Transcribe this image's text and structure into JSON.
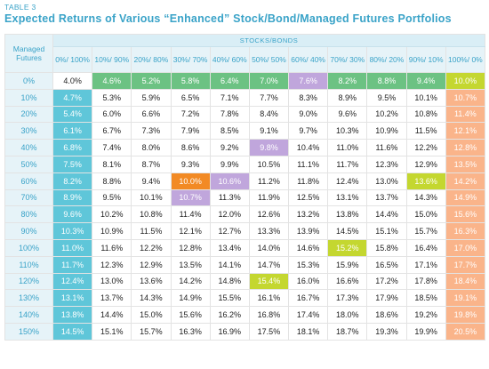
{
  "table_label": "TABLE 3",
  "title": "Expected Returns of Various “Enhanced” Stock/Bond/Managed Futures Portfolios",
  "corner_label": "Managed Futures",
  "super_header": "STOCKS/BONDS",
  "columns": [
    "0%/ 100%",
    "10%/ 90%",
    "20%/ 80%",
    "30%/ 70%",
    "40%/ 60%",
    "50%/ 50%",
    "60%/ 40%",
    "70%/ 30%",
    "80%/ 20%",
    "90%/ 10%",
    "100%/ 0%"
  ],
  "colors": {
    "blue": "#5fc6d9",
    "light_orange": "#fab48a",
    "green": "#6cc283",
    "yellow_green": "#c4d730",
    "purple": "#c0a6dc",
    "orange": "#f28a24",
    "header_text": "#3aa3c8"
  },
  "rows": [
    {
      "label": "0%",
      "values": [
        "4.0%",
        "4.6%",
        "5.2%",
        "5.8%",
        "6.4%",
        "7.0%",
        "7.6%",
        "8.2%",
        "8.8%",
        "9.4%",
        "10.0%"
      ],
      "styles": [
        "plain",
        "green",
        "green",
        "green",
        "green",
        "green",
        "purple",
        "green",
        "green",
        "green",
        "yellowgreen"
      ]
    },
    {
      "label": "10%",
      "values": [
        "4.7%",
        "5.3%",
        "5.9%",
        "6.5%",
        "7.1%",
        "7.7%",
        "8.3%",
        "8.9%",
        "9.5%",
        "10.1%",
        "10.7%"
      ],
      "styles": [
        "blue",
        "plain",
        "plain",
        "plain",
        "plain",
        "plain",
        "plain",
        "plain",
        "plain",
        "plain",
        "lorange"
      ]
    },
    {
      "label": "20%",
      "values": [
        "5.4%",
        "6.0%",
        "6.6%",
        "7.2%",
        "7.8%",
        "8.4%",
        "9.0%",
        "9.6%",
        "10.2%",
        "10.8%",
        "11.4%"
      ],
      "styles": [
        "blue",
        "plain",
        "plain",
        "plain",
        "plain",
        "plain",
        "plain",
        "plain",
        "plain",
        "plain",
        "lorange"
      ]
    },
    {
      "label": "30%",
      "values": [
        "6.1%",
        "6.7%",
        "7.3%",
        "7.9%",
        "8.5%",
        "9.1%",
        "9.7%",
        "10.3%",
        "10.9%",
        "11.5%",
        "12.1%"
      ],
      "styles": [
        "blue",
        "plain",
        "plain",
        "plain",
        "plain",
        "plain",
        "plain",
        "plain",
        "plain",
        "plain",
        "lorange"
      ]
    },
    {
      "label": "40%",
      "values": [
        "6.8%",
        "7.4%",
        "8.0%",
        "8.6%",
        "9.2%",
        "9.8%",
        "10.4%",
        "11.0%",
        "11.6%",
        "12.2%",
        "12.8%"
      ],
      "styles": [
        "blue",
        "plain",
        "plain",
        "plain",
        "plain",
        "purple",
        "plain",
        "plain",
        "plain",
        "plain",
        "lorange"
      ]
    },
    {
      "label": "50%",
      "values": [
        "7.5%",
        "8.1%",
        "8.7%",
        "9.3%",
        "9.9%",
        "10.5%",
        "11.1%",
        "11.7%",
        "12.3%",
        "12.9%",
        "13.5%"
      ],
      "styles": [
        "blue",
        "plain",
        "plain",
        "plain",
        "plain",
        "plain",
        "plain",
        "plain",
        "plain",
        "plain",
        "lorange"
      ]
    },
    {
      "label": "60%",
      "values": [
        "8.2%",
        "8.8%",
        "9.4%",
        "10.0%",
        "10.6%",
        "11.2%",
        "11.8%",
        "12.4%",
        "13.0%",
        "13.6%",
        "14.2%"
      ],
      "styles": [
        "blue",
        "plain",
        "plain",
        "orange",
        "purple",
        "plain",
        "plain",
        "plain",
        "plain",
        "yellowgreen",
        "lorange"
      ]
    },
    {
      "label": "70%",
      "values": [
        "8.9%",
        "9.5%",
        "10.1%",
        "10.7%",
        "11.3%",
        "11.9%",
        "12.5%",
        "13.1%",
        "13.7%",
        "14.3%",
        "14.9%"
      ],
      "styles": [
        "blue",
        "plain",
        "plain",
        "purple",
        "plain",
        "plain",
        "plain",
        "plain",
        "plain",
        "plain",
        "lorange"
      ]
    },
    {
      "label": "80%",
      "values": [
        "9.6%",
        "10.2%",
        "10.8%",
        "11.4%",
        "12.0%",
        "12.6%",
        "13.2%",
        "13.8%",
        "14.4%",
        "15.0%",
        "15.6%"
      ],
      "styles": [
        "blue",
        "plain",
        "plain",
        "plain",
        "plain",
        "plain",
        "plain",
        "plain",
        "plain",
        "plain",
        "lorange"
      ]
    },
    {
      "label": "90%",
      "values": [
        "10.3%",
        "10.9%",
        "11.5%",
        "12.1%",
        "12.7%",
        "13.3%",
        "13.9%",
        "14.5%",
        "15.1%",
        "15.7%",
        "16.3%"
      ],
      "styles": [
        "blue",
        "plain",
        "plain",
        "plain",
        "plain",
        "plain",
        "plain",
        "plain",
        "plain",
        "plain",
        "lorange"
      ]
    },
    {
      "label": "100%",
      "values": [
        "11.0%",
        "11.6%",
        "12.2%",
        "12.8%",
        "13.4%",
        "14.0%",
        "14.6%",
        "15.2%",
        "15.8%",
        "16.4%",
        "17.0%"
      ],
      "styles": [
        "blue",
        "plain",
        "plain",
        "plain",
        "plain",
        "plain",
        "plain",
        "yellowgreen",
        "plain",
        "plain",
        "lorange"
      ]
    },
    {
      "label": "110%",
      "values": [
        "11.7%",
        "12.3%",
        "12.9%",
        "13.5%",
        "14.1%",
        "14.7%",
        "15.3%",
        "15.9%",
        "16.5%",
        "17.1%",
        "17.7%"
      ],
      "styles": [
        "blue",
        "plain",
        "plain",
        "plain",
        "plain",
        "plain",
        "plain",
        "plain",
        "plain",
        "plain",
        "lorange"
      ]
    },
    {
      "label": "120%",
      "values": [
        "12.4%",
        "13.0%",
        "13.6%",
        "14.2%",
        "14.8%",
        "15.4%",
        "16.0%",
        "16.6%",
        "17.2%",
        "17.8%",
        "18.4%"
      ],
      "styles": [
        "blue",
        "plain",
        "plain",
        "plain",
        "plain",
        "yellowgreen",
        "plain",
        "plain",
        "plain",
        "plain",
        "lorange"
      ]
    },
    {
      "label": "130%",
      "values": [
        "13.1%",
        "13.7%",
        "14.3%",
        "14.9%",
        "15.5%",
        "16.1%",
        "16.7%",
        "17.3%",
        "17.9%",
        "18.5%",
        "19.1%"
      ],
      "styles": [
        "blue",
        "plain",
        "plain",
        "plain",
        "plain",
        "plain",
        "plain",
        "plain",
        "plain",
        "plain",
        "lorange"
      ]
    },
    {
      "label": "140%",
      "values": [
        "13.8%",
        "14.4%",
        "15.0%",
        "15.6%",
        "16.2%",
        "16.8%",
        "17.4%",
        "18.0%",
        "18.6%",
        "19.2%",
        "19.8%"
      ],
      "styles": [
        "blue",
        "plain",
        "plain",
        "plain",
        "plain",
        "plain",
        "plain",
        "plain",
        "plain",
        "plain",
        "lorange"
      ]
    },
    {
      "label": "150%",
      "values": [
        "14.5%",
        "15.1%",
        "15.7%",
        "16.3%",
        "16.9%",
        "17.5%",
        "18.1%",
        "18.7%",
        "19.3%",
        "19.9%",
        "20.5%"
      ],
      "styles": [
        "blue",
        "plain",
        "plain",
        "plain",
        "plain",
        "plain",
        "plain",
        "plain",
        "plain",
        "plain",
        "lorange"
      ]
    }
  ]
}
